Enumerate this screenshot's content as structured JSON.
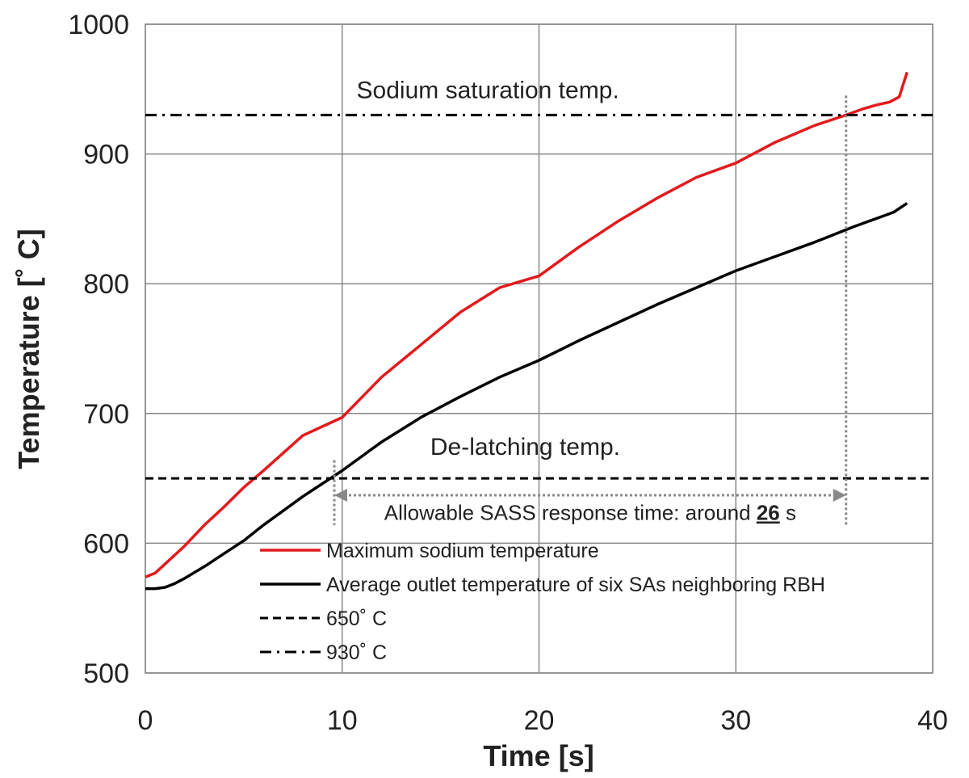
{
  "chart_data": {
    "type": "line",
    "xlabel": "Time [s]",
    "ylabel": "Temperature [˚ C]",
    "xlim": [
      0,
      40
    ],
    "ylim": [
      500,
      1000
    ],
    "xticks": [
      "0",
      "10",
      "20",
      "30",
      "40"
    ],
    "yticks": [
      "500",
      "600",
      "700",
      "800",
      "900",
      "1000"
    ],
    "grid": true,
    "legend_position": "bottom-right",
    "series": [
      {
        "name": "Maximum sodium temperature",
        "color": "#e31a1c",
        "x": [
          0,
          0.5,
          1,
          2,
          3,
          4,
          5,
          6,
          8,
          10,
          12,
          14,
          16,
          18,
          20,
          22,
          24,
          26,
          28,
          30,
          32,
          34,
          35.6,
          36.5,
          37.2,
          37.8,
          38.3,
          38.7
        ],
        "y": [
          574,
          577,
          584,
          598,
          614,
          628,
          643,
          656,
          683,
          697,
          728,
          753,
          778,
          797,
          806,
          828,
          848,
          866,
          882,
          893,
          909,
          922,
          930,
          935,
          938,
          940,
          944,
          963
        ]
      },
      {
        "name": "Average outlet temperature of six SAs neighboring RBH",
        "color": "#000000",
        "x": [
          0,
          0.5,
          1,
          1.5,
          2,
          3,
          4,
          5,
          6,
          8,
          10,
          12,
          14,
          16,
          18,
          20,
          22,
          24,
          26,
          28,
          30,
          32,
          34,
          36,
          38,
          38.7
        ],
        "y": [
          565,
          565,
          566,
          569,
          573,
          582,
          592,
          602,
          614,
          636,
          656,
          678,
          697,
          713,
          728,
          741,
          756,
          770,
          784,
          797,
          810,
          821,
          832,
          844,
          855,
          862
        ]
      },
      {
        "name": "650˚ C",
        "color": "#000000",
        "style": "dashed",
        "x": [
          0,
          40
        ],
        "y": [
          650,
          650
        ]
      },
      {
        "name": "930˚ C",
        "color": "#000000",
        "style": "dash-dot",
        "x": [
          0,
          40
        ],
        "y": [
          930,
          930
        ]
      }
    ],
    "annotations": {
      "saturation": {
        "text": "Sodium saturation temp.",
        "x": 17.4,
        "y": 943
      },
      "delatching": {
        "text": "De-latching temp.",
        "x": 19.3,
        "y": 668
      },
      "response_time": {
        "prefix": "Allowable SASS response time: around ",
        "value": "26",
        "suffix": " s",
        "x_start": 9.6,
        "x_end": 35.6,
        "y": 637,
        "text_y": 618
      },
      "marker_lines": [
        {
          "x": 9.6,
          "y_top": 664,
          "y_bottom": 614
        },
        {
          "x": 35.6,
          "y_top": 945,
          "y_bottom": 614
        }
      ]
    }
  }
}
